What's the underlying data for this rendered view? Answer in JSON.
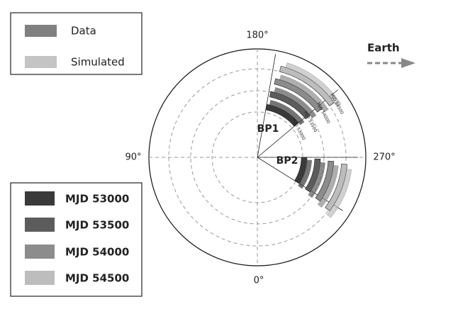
{
  "legend_top": {
    "items": [
      "Data",
      "Simulated"
    ]
  },
  "legend_epochs": {
    "items": [
      "MJD 53000",
      "MJD 53500",
      "MJD 54000",
      "MJD 54500"
    ]
  },
  "angle_labels": {
    "top": "180°",
    "left": "90°",
    "right": "270°",
    "bottom": "0°"
  },
  "regions": [
    "BP1",
    "BP2"
  ],
  "direction": {
    "label": "Earth"
  },
  "epoch_markers": [
    "MJD 54500",
    "MJD 54000",
    "MJD 53500",
    "MJD 53000"
  ]
}
